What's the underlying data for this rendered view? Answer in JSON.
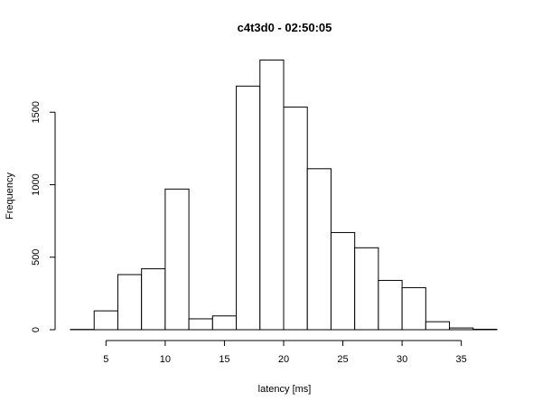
{
  "chart_data": {
    "type": "bar",
    "subtype": "histogram",
    "title": "c4t3d0 - 02:50:05",
    "xlabel": "latency [ms]",
    "ylabel": "Frequency",
    "bin_edges": [
      2,
      4,
      6,
      8,
      10,
      12,
      14,
      16,
      18,
      20,
      22,
      24,
      26,
      28,
      30,
      32,
      34,
      36,
      38
    ],
    "values": [
      2,
      130,
      380,
      420,
      970,
      75,
      95,
      1680,
      1860,
      1535,
      1110,
      670,
      565,
      340,
      290,
      55,
      12,
      3
    ],
    "xlim": [
      2,
      38
    ],
    "ylim": [
      0,
      1900
    ],
    "x_ticks": [
      5,
      10,
      15,
      20,
      25,
      30,
      35
    ],
    "y_ticks": [
      0,
      500,
      1000,
      1500
    ],
    "grid": false,
    "legend": "none",
    "bar_fill": "#ffffff",
    "bar_stroke": "#000000"
  }
}
